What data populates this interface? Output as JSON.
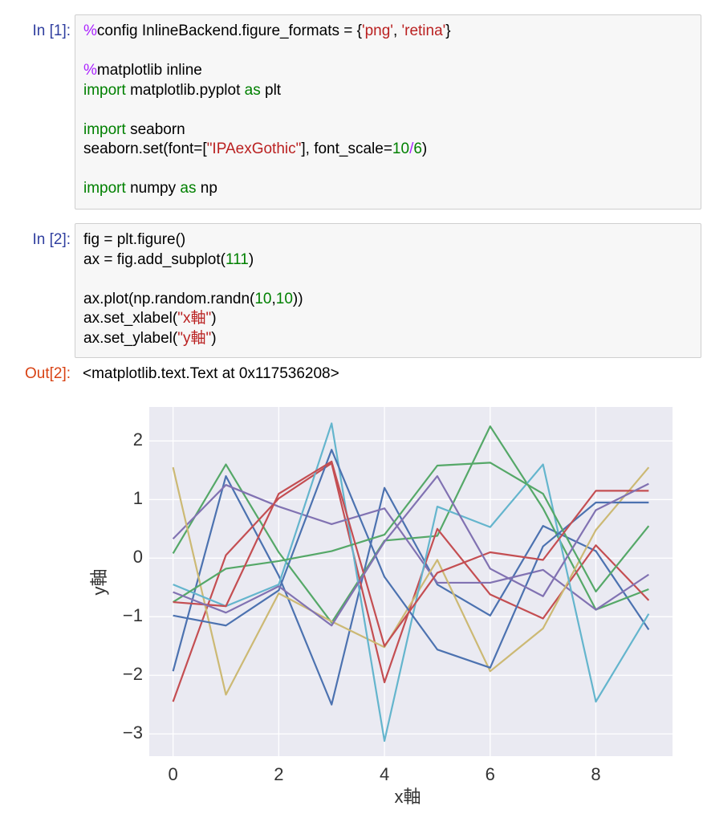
{
  "cells": [
    {
      "prompt": "In [1]:",
      "code": [
        [
          [
            {
              "text": "%",
              "color": "#AA22FF"
            },
            "config InlineBackend.figure_formats = {",
            {
              "text": "'png'",
              "color": "#BA2121"
            },
            ", ",
            {
              "text": "'retina'",
              "color": "#BA2121"
            },
            "}"
          ]
        ],
        [
          [
            {
              "text": "%",
              "color": "#AA22FF"
            },
            "matplotlib inline"
          ],
          [
            {
              "text": "import",
              "color": "#008000"
            },
            " matplotlib.pyplot ",
            {
              "text": "as",
              "color": "#008000"
            },
            " plt"
          ]
        ],
        [
          [
            {
              "text": "import",
              "color": "#008000"
            },
            " seaborn"
          ],
          [
            "seaborn.set(font=[",
            {
              "text": "\"IPAexGothic\"",
              "color": "#BA2121"
            },
            "], font_scale=",
            {
              "text": "10",
              "color": "#008000"
            },
            {
              "text": "/",
              "color": "#AA22FF"
            },
            {
              "text": "6",
              "color": "#008000"
            },
            ")"
          ]
        ],
        [
          [
            {
              "text": "import",
              "color": "#008000"
            },
            " numpy ",
            {
              "text": "as",
              "color": "#008000"
            },
            " np"
          ]
        ]
      ]
    },
    {
      "prompt": "In [2]:",
      "code": [
        [
          [
            "fig = plt.figure()"
          ],
          [
            "ax = fig.add_subplot(",
            {
              "text": "111",
              "color": "#008000"
            },
            ")"
          ]
        ],
        [
          [
            "ax.plot(np.random.randn(",
            {
              "text": "10",
              "color": "#008000"
            },
            ",",
            {
              "text": "10",
              "color": "#008000"
            },
            "))"
          ],
          [
            "ax.set_xlabel(",
            {
              "text": "\"x軸\"",
              "color": "#BA2121"
            },
            ")"
          ],
          [
            "ax.set_ylabel(",
            {
              "text": "\"y軸\"",
              "color": "#BA2121"
            },
            ")"
          ]
        ]
      ]
    }
  ],
  "output": {
    "prompt": "Out[2]:",
    "text": "<matplotlib.text.Text at 0x117536208>"
  },
  "chart_data": {
    "type": "line",
    "xlabel": "x軸",
    "ylabel": "y軸",
    "x": [
      0,
      1,
      2,
      3,
      4,
      5,
      6,
      7,
      8,
      9
    ],
    "xlim": [
      -0.45,
      9.45
    ],
    "ylim": [
      -3.38,
      2.58
    ],
    "xticks": [
      0,
      2,
      4,
      6,
      8
    ],
    "yticks": [
      2,
      1,
      0,
      {
        "value": -1,
        "label": "−1"
      },
      {
        "value": -2,
        "label": "−2"
      },
      {
        "value": -3,
        "label": "−3"
      }
    ],
    "grid": true,
    "background": "#EAEAF2",
    "series": [
      {
        "color": "#4C72B0",
        "values": [
          -1.93,
          1.4,
          -0.3,
          -2.5,
          1.2,
          -0.45,
          -0.98,
          0.55,
          0.12,
          -1.22
        ]
      },
      {
        "color": "#55A868",
        "values": [
          0.08,
          1.6,
          0.1,
          -1.1,
          0.3,
          0.38,
          2.25,
          0.85,
          -0.88,
          -0.53
        ]
      },
      {
        "color": "#C44E52",
        "values": [
          -2.45,
          0.05,
          1.02,
          1.62,
          -2.12,
          0.5,
          -0.62,
          -1.03,
          0.22,
          -0.72
        ]
      },
      {
        "color": "#8172B2",
        "values": [
          0.33,
          1.25,
          0.88,
          0.58,
          0.85,
          -0.42,
          -0.42,
          -0.2,
          -0.88,
          -0.28
        ]
      },
      {
        "color": "#CCB974",
        "values": [
          1.55,
          -2.33,
          -0.6,
          -1.08,
          -1.52,
          -0.03,
          -1.93,
          -1.2,
          0.48,
          1.55
        ]
      },
      {
        "color": "#64B5CD",
        "values": [
          -0.45,
          -0.82,
          -0.45,
          2.3,
          -3.12,
          0.88,
          0.53,
          1.6,
          -2.45,
          -0.95
        ]
      },
      {
        "color": "#4C72B0",
        "values": [
          -0.98,
          -1.15,
          -0.55,
          1.85,
          -0.32,
          -1.56,
          -1.87,
          0.2,
          0.95,
          0.95
        ]
      },
      {
        "color": "#55A868",
        "values": [
          -0.75,
          -0.18,
          -0.05,
          0.12,
          0.4,
          1.58,
          1.63,
          1.1,
          -0.57,
          0.55
        ]
      },
      {
        "color": "#C44E52",
        "values": [
          -0.75,
          -0.82,
          1.1,
          1.65,
          -1.5,
          -0.25,
          0.1,
          -0.03,
          1.15,
          1.15
        ]
      },
      {
        "color": "#8172B2",
        "values": [
          -0.58,
          -0.93,
          -0.48,
          -1.15,
          0.28,
          1.4,
          -0.18,
          -0.65,
          0.82,
          1.27
        ]
      }
    ]
  }
}
